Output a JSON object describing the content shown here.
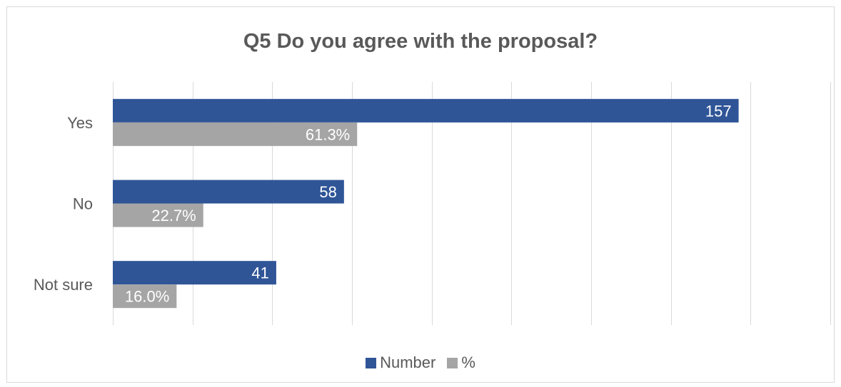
{
  "chart_data": {
    "type": "bar",
    "orientation": "horizontal",
    "title": "Q5 Do you agree with the proposal?",
    "categories": [
      "Yes",
      "No",
      "Not sure"
    ],
    "series": [
      {
        "name": "Number",
        "values": [
          157,
          58,
          41
        ],
        "labels": [
          "157",
          "58",
          "41"
        ],
        "color": "#2F5597"
      },
      {
        "name": "%",
        "values": [
          61.3,
          22.7,
          16.0
        ],
        "labels": [
          "61.3%",
          "22.7%",
          "16.0%"
        ],
        "color": "#A5A5A5"
      }
    ],
    "xlim": [
      0,
      180
    ],
    "grid": true,
    "legend_position": "bottom"
  }
}
